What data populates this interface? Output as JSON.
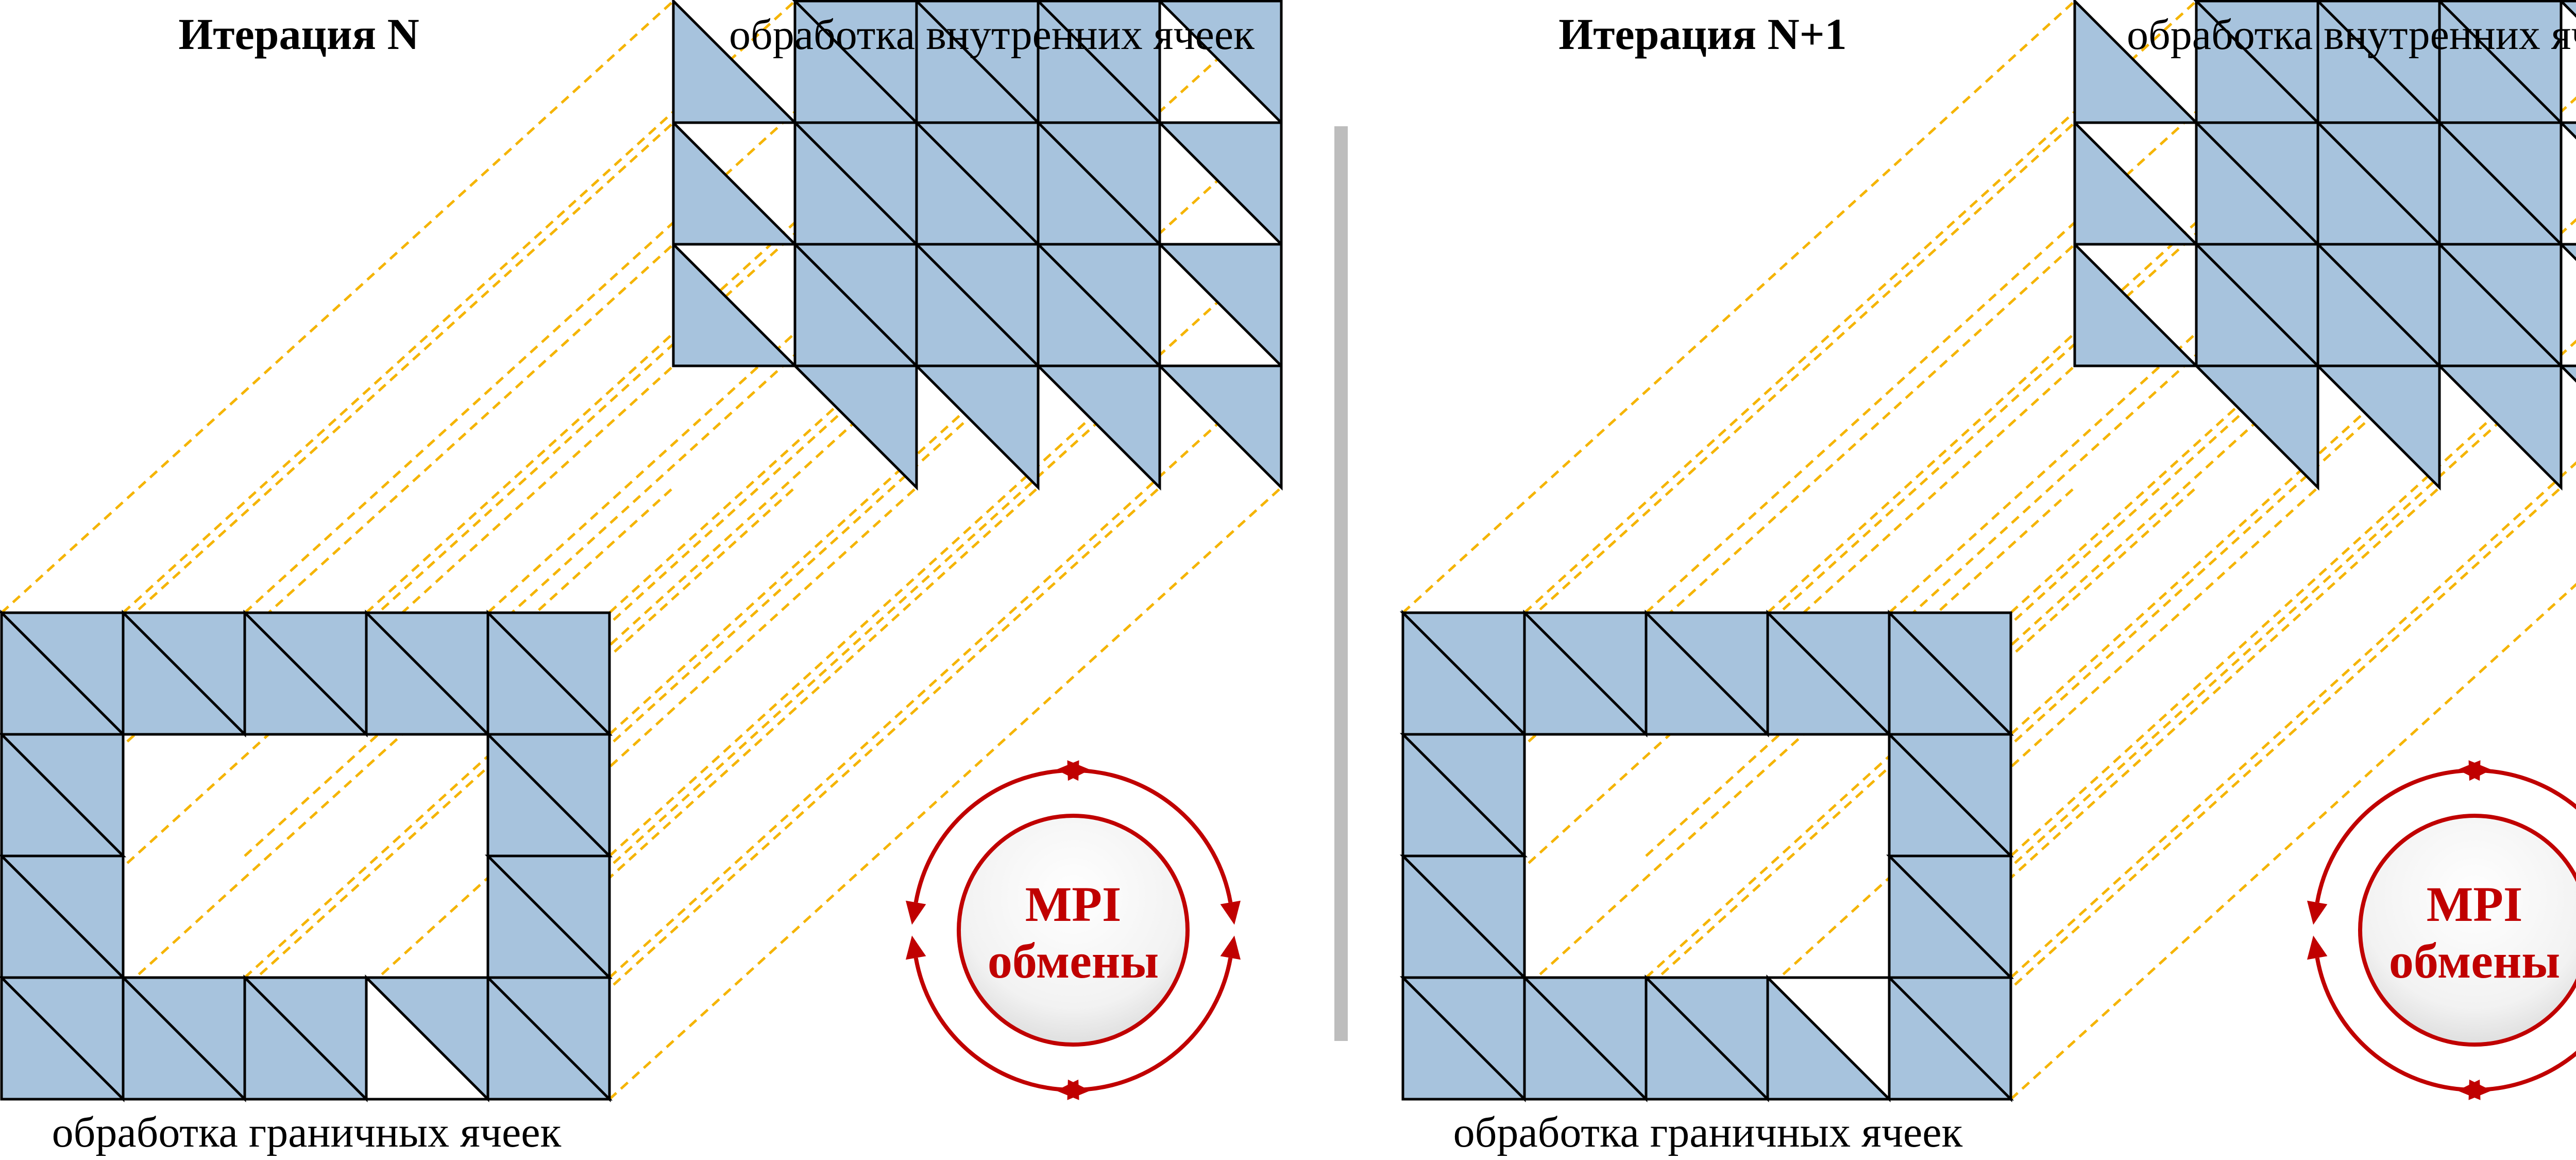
{
  "panels": [
    {
      "title": "Итерация N",
      "interior_label": "обработка внутренних ячеек",
      "boundary_label": "обработка граничных ячеек",
      "mpi_line1": "MPI",
      "mpi_line2": "обмены",
      "boundary_blank_triangles": [
        [
          0,
          4,
          "upper"
        ],
        [
          3,
          0,
          "lower"
        ]
      ]
    },
    {
      "title": "Итерация N+1",
      "interior_label": "обработка внутренних ячеек",
      "boundary_label": "обработка граничных ячеек",
      "mpi_line1": "MPI",
      "mpi_line2": "обмены",
      "boundary_blank_triangles": [
        [
          3,
          0,
          "upper"
        ],
        [
          0,
          4,
          "lower"
        ]
      ]
    }
  ],
  "colors": {
    "cell_fill": "#a7c3dd",
    "cell_stroke": "#000000",
    "projection_line": "#f5b400",
    "mpi_arrow": "#c00000",
    "mpi_text": "#c00000",
    "separator": "#bdbdbd"
  }
}
